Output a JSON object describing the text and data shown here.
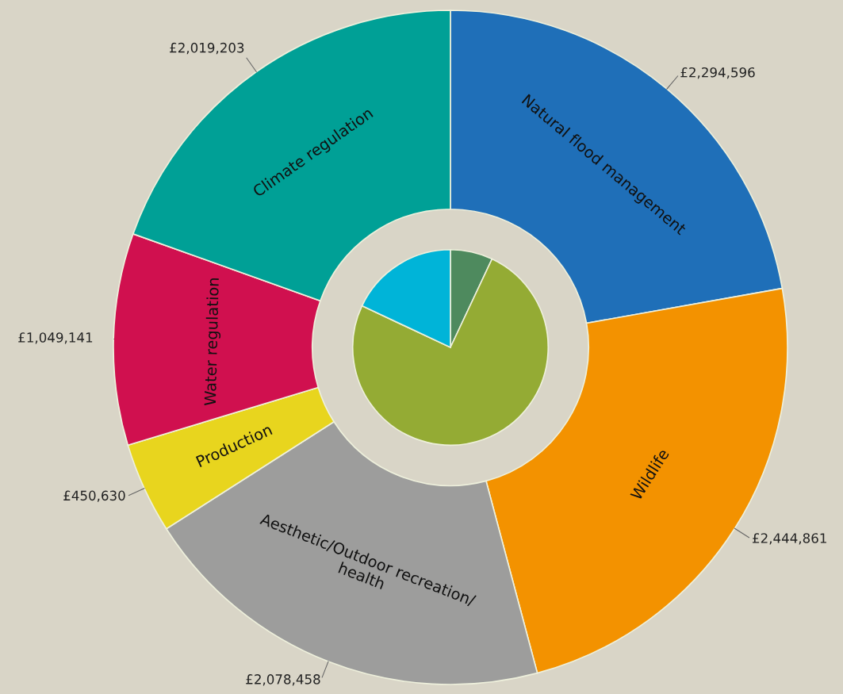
{
  "chart_data": {
    "type": "donut",
    "categories": [
      "Natural flood management",
      "Wildlife",
      "Aesthetic/Outdoor recreation/\nhealth",
      "Production",
      "Water regulation",
      "Climate regulation",
      null,
      null,
      null
    ],
    "series": [
      {
        "values": [
          2294596,
          2444861,
          2078458,
          450630,
          1049141,
          2019203,
          null,
          null,
          null
        ],
        "value_labels": [
          "£2,294,596",
          "£2,444,861",
          "£2,078,458",
          "£450,630",
          "£1,049,141",
          "£2,019,203",
          null,
          null,
          null
        ],
        "colors": [
          "#1f6fb8",
          "#f39200",
          "#9d9d9c",
          "#e8d51e",
          "#d0104f",
          "#00a096",
          null,
          null,
          null
        ]
      },
      {
        "type": "pie",
        "values": [
          null,
          null,
          null,
          null,
          null,
          null,
          7,
          75,
          18
        ],
        "colors": [
          null,
          null,
          null,
          null,
          null,
          null,
          "#4e8a5e",
          "#94ab34",
          "#00b4d8"
        ]
      }
    ]
  }
}
